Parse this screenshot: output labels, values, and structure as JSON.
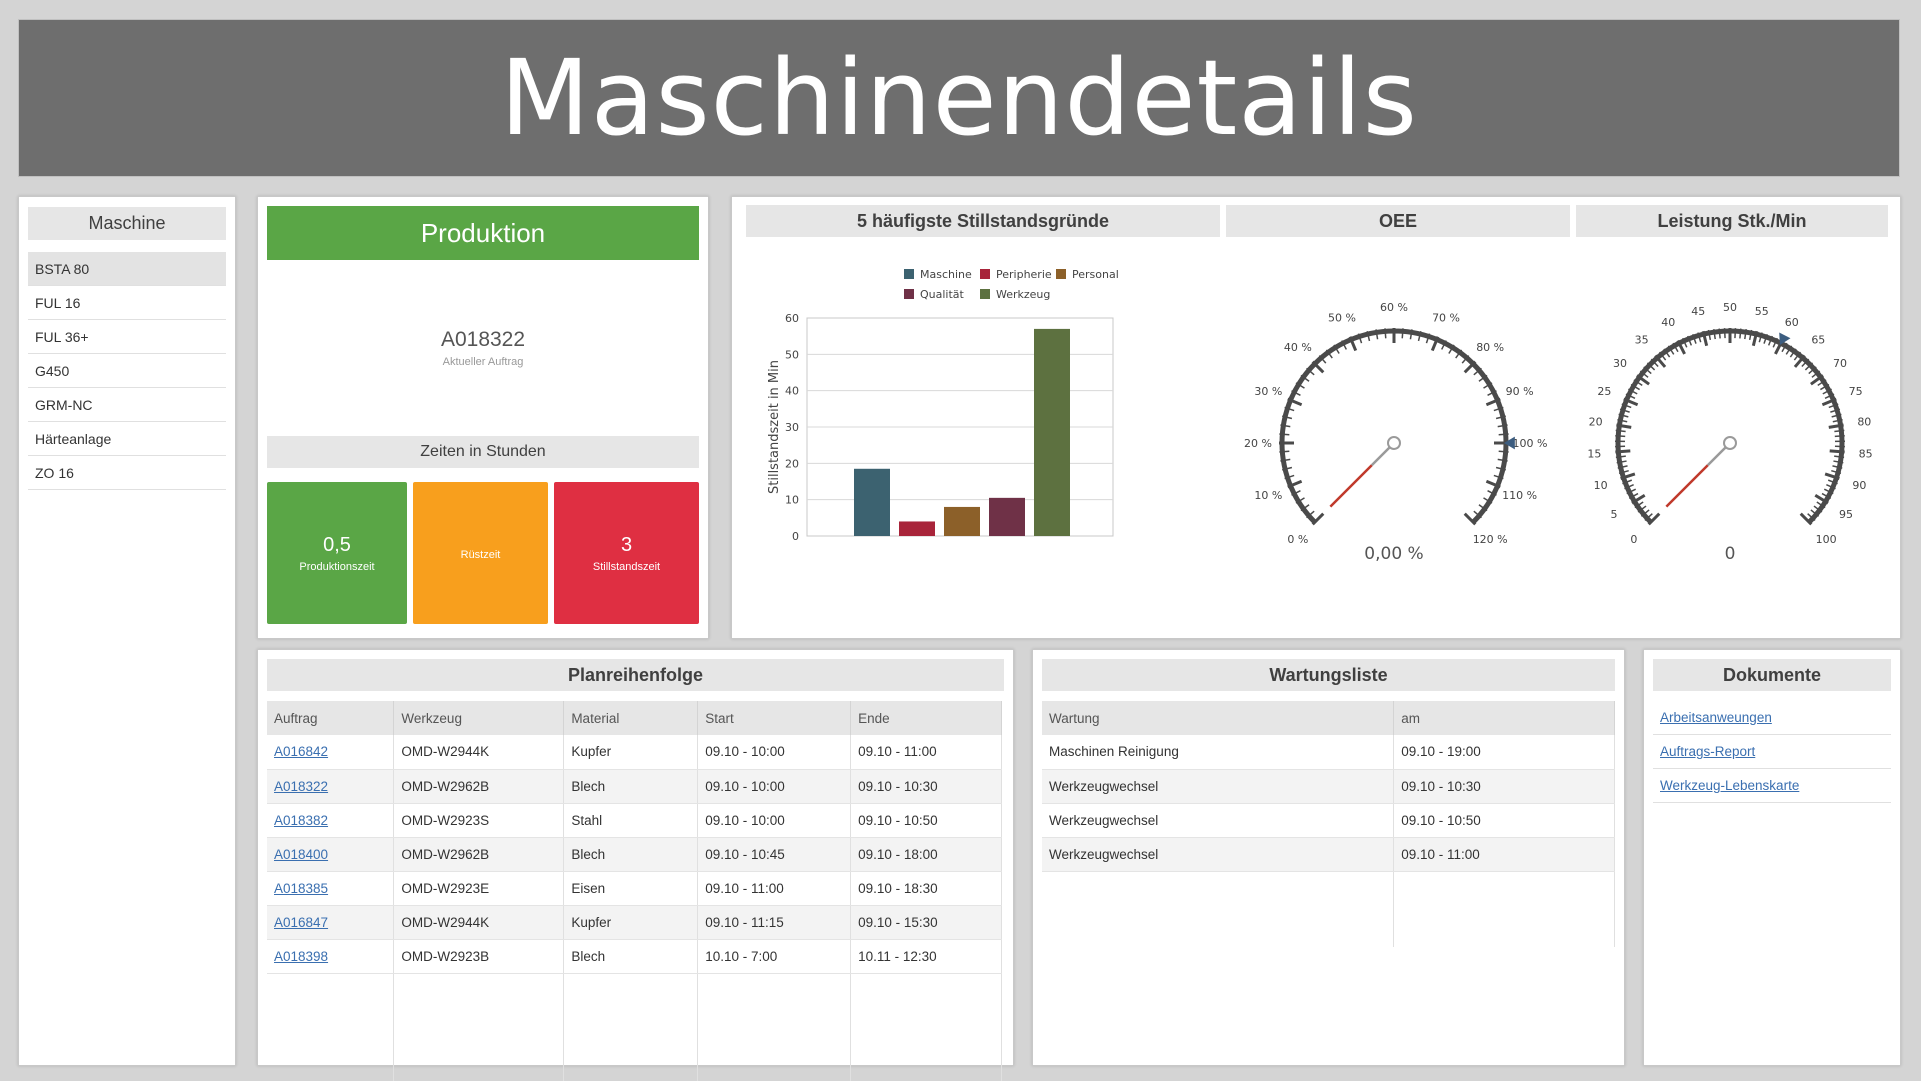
{
  "header": {
    "title": "Maschinendetails"
  },
  "machines": {
    "title": "Maschine",
    "items": [
      "BSTA 80",
      "FUL 16",
      "FUL 36+",
      "G450",
      "GRM-NC",
      "Härteanlage",
      "ZO 16"
    ],
    "active_index": 0
  },
  "production": {
    "title": "Produktion",
    "order_number": "A018322",
    "order_label": "Aktueller Auftrag",
    "times_title": "Zeiten in Stunden",
    "tiles": [
      {
        "value": "0,5",
        "label": "Produktionszeit",
        "color": "#5aa646"
      },
      {
        "value": "",
        "label": "Rüstzeit",
        "color": "#f89f1d"
      },
      {
        "value": "3",
        "label": "Stillstandszeit",
        "color": "#df2f42"
      }
    ]
  },
  "downtime": {
    "title": "5 häufigste Stillstandsgründe"
  },
  "oee": {
    "title": "OEE",
    "value_text": "0,00 %",
    "value": 0,
    "min": 0,
    "max": 120,
    "marker": 100,
    "ticks": [
      "0 %",
      "10 %",
      "20 %",
      "30 %",
      "40 %",
      "50 %",
      "60 %",
      "70 %",
      "80 %",
      "90 %",
      "100 %",
      "110 %",
      "120 %"
    ]
  },
  "performance": {
    "title": "Leistung Stk./Min",
    "value_text": "0",
    "value": 0,
    "min": 0,
    "max": 100,
    "marker": 60,
    "ticks": [
      "0",
      "5",
      "10",
      "15",
      "20",
      "25",
      "30",
      "35",
      "40",
      "45",
      "50",
      "55",
      "60",
      "65",
      "70",
      "75",
      "80",
      "85",
      "90",
      "95",
      "100"
    ]
  },
  "chart_data": {
    "type": "bar",
    "title": "5 häufigste Stillstandsgründe",
    "categories": [
      "Maschine",
      "Peripherie",
      "Personal",
      "Qualität",
      "Werkzeug"
    ],
    "values": [
      18.5,
      4,
      8,
      10.5,
      57
    ],
    "colors": [
      "#3c6270",
      "#a8243a",
      "#8c6029",
      "#6f3147",
      "#5d7140"
    ],
    "ylabel": "Stillstandszeit in Min",
    "ylim": [
      0,
      60
    ],
    "yticks": [
      "0",
      "10",
      "20",
      "30",
      "40",
      "50",
      "60"
    ],
    "grid": true,
    "legend": "top"
  },
  "plan": {
    "title": "Planreihenfolge",
    "columns": [
      "Auftrag",
      "Werkzeug",
      "Material",
      "Start",
      "Ende"
    ],
    "rows": [
      [
        "A016842",
        "OMD-W2944K",
        "Kupfer",
        "09.10 - 10:00",
        "09.10 - 11:00"
      ],
      [
        "A018322",
        "OMD-W2962B",
        "Blech",
        "09.10 - 10:00",
        "09.10 - 10:30"
      ],
      [
        "A018382",
        "OMD-W2923S",
        "Stahl",
        "09.10 - 10:00",
        "09.10 - 10:50"
      ],
      [
        "A018400",
        "OMD-W2962B",
        "Blech",
        "09.10 - 10:45",
        "09.10 - 18:00"
      ],
      [
        "A018385",
        "OMD-W2923E",
        "Eisen",
        "09.10 - 11:00",
        "09.10 - 18:30"
      ],
      [
        "A016847",
        "OMD-W2944K",
        "Kupfer",
        "09.10 - 11:15",
        "09.10 - 15:30"
      ],
      [
        "A018398",
        "OMD-W2923B",
        "Blech",
        "10.10 - 7:00",
        "10.11 - 12:30"
      ]
    ]
  },
  "maintenance": {
    "title": "Wartungsliste",
    "columns": [
      "Wartung",
      "am"
    ],
    "rows": [
      [
        "Maschinen Reinigung",
        "09.10 - 19:00"
      ],
      [
        "Werkzeugwechsel",
        "09.10 - 10:30"
      ],
      [
        "Werkzeugwechsel",
        "09.10 - 10:50"
      ],
      [
        "Werkzeugwechsel",
        "09.10 - 11:00"
      ]
    ]
  },
  "documents": {
    "title": "Dokumente",
    "items": [
      "Arbeitsanweungen",
      "Auftrags-Report",
      "Werkzeug-Lebenskarte"
    ]
  }
}
